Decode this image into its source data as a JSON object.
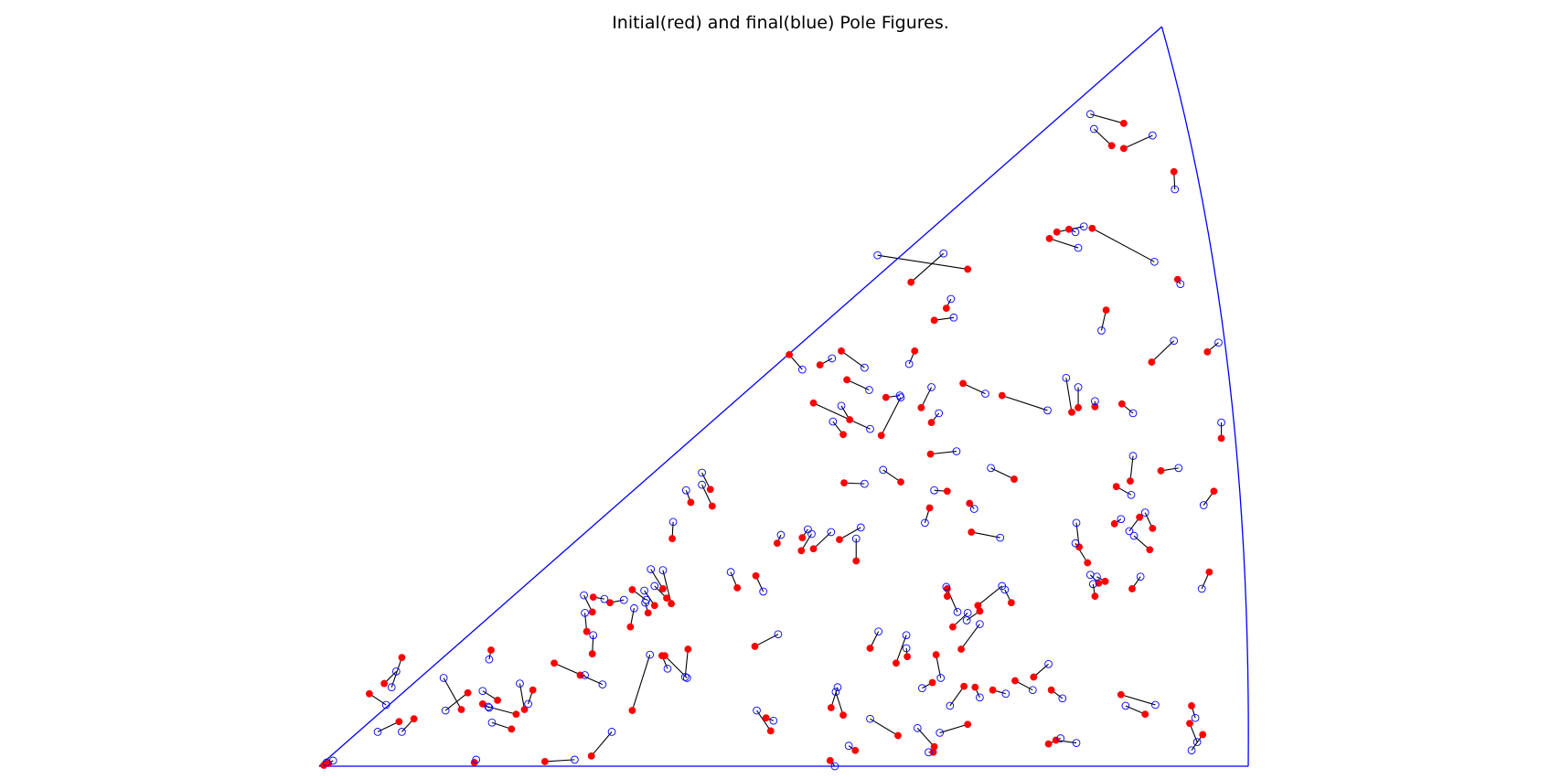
{
  "chart_data": {
    "type": "scatter",
    "title": "Initial(red) and final(blue) Pole Figures.",
    "xlabel": "",
    "ylabel": "",
    "xlim": [
      0,
      1
    ],
    "ylim": [
      0,
      0.78
    ],
    "grid": false,
    "legend": "none",
    "colors": {
      "initial": "#ff0000",
      "final": "#0000ff",
      "link": "#000000",
      "boundary": "#0000ff"
    },
    "series": [
      {
        "name": "initial(red)",
        "marker": "filled-circle",
        "points": [
          [
            0.866,
            0.692
          ],
          [
            0.853,
            0.668
          ],
          [
            0.866,
            0.665
          ],
          [
            0.92,
            0.64
          ],
          [
            0.807,
            0.578
          ],
          [
            0.794,
            0.575
          ],
          [
            0.786,
            0.568
          ],
          [
            0.832,
            0.579
          ],
          [
            0.924,
            0.524
          ],
          [
            0.698,
            0.535
          ],
          [
            0.637,
            0.521
          ],
          [
            0.675,
            0.493
          ],
          [
            0.662,
            0.48
          ],
          [
            0.847,
            0.491
          ],
          [
            0.896,
            0.435
          ],
          [
            0.956,
            0.446
          ],
          [
            0.506,
            0.443
          ],
          [
            0.562,
            0.447
          ],
          [
            0.641,
            0.447
          ],
          [
            0.539,
            0.432
          ],
          [
            0.568,
            0.416
          ],
          [
            0.648,
            0.386
          ],
          [
            0.659,
            0.37
          ],
          [
            0.693,
            0.412
          ],
          [
            0.81,
            0.381
          ],
          [
            0.817,
            0.386
          ],
          [
            0.835,
            0.387
          ],
          [
            0.735,
            0.399
          ],
          [
            0.971,
            0.353
          ],
          [
            0.864,
            0.39
          ],
          [
            0.571,
            0.373
          ],
          [
            0.532,
            0.391
          ],
          [
            0.564,
            0.357
          ],
          [
            0.658,
            0.336
          ],
          [
            0.626,
            0.306
          ],
          [
            0.748,
            0.309
          ],
          [
            0.676,
            0.296
          ],
          [
            0.702,
            0.252
          ],
          [
            0.858,
            0.301
          ],
          [
            0.963,
            0.296
          ],
          [
            0.906,
            0.318
          ],
          [
            0.657,
            0.278
          ],
          [
            0.883,
            0.268
          ],
          [
            0.856,
            0.261
          ],
          [
            0.897,
            0.256
          ],
          [
            0.421,
            0.298
          ],
          [
            0.423,
            0.28
          ],
          [
            0.4,
            0.284
          ],
          [
            0.578,
            0.221
          ],
          [
            0.519,
            0.232
          ],
          [
            0.38,
            0.245
          ],
          [
            0.532,
            0.234
          ],
          [
            0.47,
            0.205
          ],
          [
            0.45,
            0.192
          ],
          [
            0.37,
            0.191
          ],
          [
            0.374,
            0.181
          ],
          [
            0.379,
            0.175
          ],
          [
            0.337,
            0.19
          ],
          [
            0.295,
            0.182
          ],
          [
            0.313,
            0.176
          ],
          [
            0.294,
            0.166
          ],
          [
            0.288,
            0.145
          ],
          [
            0.335,
            0.15
          ],
          [
            0.361,
            0.173
          ],
          [
            0.354,
            0.165
          ],
          [
            0.682,
            0.15
          ],
          [
            0.676,
            0.183
          ],
          [
            0.676,
            0.191
          ],
          [
            0.745,
            0.176
          ],
          [
            0.709,
            0.173
          ],
          [
            0.835,
            0.183
          ],
          [
            0.846,
            0.199
          ],
          [
            0.875,
            0.191
          ],
          [
            0.839,
            0.197
          ],
          [
            0.691,
            0.126
          ],
          [
            0.593,
            0.127
          ],
          [
            0.621,
            0.111
          ],
          [
            0.633,
            0.118
          ],
          [
            0.469,
            0.129
          ],
          [
            0.397,
            0.126
          ],
          [
            0.372,
            0.119
          ],
          [
            0.369,
            0.119
          ],
          [
            0.294,
            0.121
          ],
          [
            0.253,
            0.111
          ],
          [
            0.281,
            0.098
          ],
          [
            0.185,
            0.125
          ],
          [
            0.16,
            0.079
          ],
          [
            0.153,
            0.061
          ],
          [
            0.192,
            0.071
          ],
          [
            0.176,
            0.067
          ],
          [
            0.212,
            0.056
          ],
          [
            0.207,
            0.04
          ],
          [
            0.221,
            0.061
          ],
          [
            0.23,
            0.082
          ],
          [
            0.089,
            0.117
          ],
          [
            0.07,
            0.089
          ],
          [
            0.054,
            0.078
          ],
          [
            0.086,
            0.048
          ],
          [
            0.102,
            0.051
          ],
          [
            0.337,
            0.06
          ],
          [
            0.481,
            0.052
          ],
          [
            0.486,
            0.038
          ],
          [
            0.551,
            0.063
          ],
          [
            0.564,
            0.055
          ],
          [
            0.623,
            0.033
          ],
          [
            0.694,
            0.086
          ],
          [
            0.66,
            0.09
          ],
          [
            0.664,
            0.12
          ],
          [
            0.698,
            0.045
          ],
          [
            0.706,
            0.085
          ],
          [
            0.725,
            0.082
          ],
          [
            0.788,
            0.082
          ],
          [
            0.749,
            0.092
          ],
          [
            0.785,
            0.024
          ],
          [
            0.793,
            0.028
          ],
          [
            0.769,
            0.096
          ],
          [
            0.863,
            0.077
          ],
          [
            0.937,
            0.046
          ],
          [
            0.951,
            0.034
          ],
          [
            0.889,
            0.056
          ],
          [
            0.662,
            0.021
          ],
          [
            0.661,
            0.015
          ],
          [
            0.577,
            0.017
          ],
          [
            0.55,
            0.006
          ],
          [
            0.293,
            0.011
          ],
          [
            0.243,
            0.005
          ],
          [
            0.167,
            0.004
          ],
          [
            0.01,
            0.003
          ],
          [
            0.005,
            0.001
          ],
          [
            0.939,
            0.065
          ],
          [
            0.958,
            0.209
          ],
          [
            0.873,
            0.307
          ],
          [
            0.894,
            0.233
          ],
          [
            0.818,
            0.236
          ],
          [
            0.827,
            0.219
          ],
          [
            0.711,
            0.167
          ],
          [
            0.605,
            0.356
          ],
          [
            0.61,
            0.397
          ],
          [
            0.56,
            0.244
          ],
          [
            0.52,
            0.246
          ],
          [
            0.493,
            0.24
          ],
          [
            0.565,
            0.305
          ],
          [
            0.7,
            0.283
          ]
        ]
      },
      {
        "name": "final(blue)",
        "marker": "open-circle",
        "points": [
          [
            0.83,
            0.702
          ],
          [
            0.834,
            0.686
          ],
          [
            0.897,
            0.679
          ],
          [
            0.921,
            0.621
          ],
          [
            0.814,
            0.575
          ],
          [
            0.823,
            0.581
          ],
          [
            0.817,
            0.558
          ],
          [
            0.899,
            0.543
          ],
          [
            0.927,
            0.519
          ],
          [
            0.601,
            0.55
          ],
          [
            0.672,
            0.552
          ],
          [
            0.68,
            0.503
          ],
          [
            0.683,
            0.483
          ],
          [
            0.842,
            0.469
          ],
          [
            0.92,
            0.458
          ],
          [
            0.968,
            0.456
          ],
          [
            0.52,
            0.427
          ],
          [
            0.587,
            0.429
          ],
          [
            0.635,
            0.433
          ],
          [
            0.552,
            0.439
          ],
          [
            0.592,
            0.405
          ],
          [
            0.659,
            0.408
          ],
          [
            0.667,
            0.38
          ],
          [
            0.717,
            0.401
          ],
          [
            0.804,
            0.418
          ],
          [
            0.817,
            0.408
          ],
          [
            0.835,
            0.393
          ],
          [
            0.784,
            0.383
          ],
          [
            0.971,
            0.37
          ],
          [
            0.876,
            0.38
          ],
          [
            0.562,
            0.388
          ],
          [
            0.593,
            0.363
          ],
          [
            0.553,
            0.371
          ],
          [
            0.686,
            0.339
          ],
          [
            0.607,
            0.319
          ],
          [
            0.723,
            0.321
          ],
          [
            0.662,
            0.297
          ],
          [
            0.733,
            0.246
          ],
          [
            0.874,
            0.292
          ],
          [
            0.952,
            0.281
          ],
          [
            0.925,
            0.321
          ],
          [
            0.652,
            0.262
          ],
          [
            0.872,
            0.253
          ],
          [
            0.863,
            0.266
          ],
          [
            0.889,
            0.273
          ],
          [
            0.412,
            0.316
          ],
          [
            0.412,
            0.303
          ],
          [
            0.395,
            0.297
          ],
          [
            0.578,
            0.245
          ],
          [
            0.53,
            0.25
          ],
          [
            0.381,
            0.263
          ],
          [
            0.551,
            0.252
          ],
          [
            0.478,
            0.188
          ],
          [
            0.443,
            0.209
          ],
          [
            0.357,
            0.212
          ],
          [
            0.361,
            0.194
          ],
          [
            0.37,
            0.211
          ],
          [
            0.352,
            0.179
          ],
          [
            0.307,
            0.18
          ],
          [
            0.328,
            0.179
          ],
          [
            0.285,
            0.184
          ],
          [
            0.286,
            0.165
          ],
          [
            0.339,
            0.17
          ],
          [
            0.35,
            0.189
          ],
          [
            0.351,
            0.176
          ],
          [
            0.698,
            0.165
          ],
          [
            0.675,
            0.193
          ],
          [
            0.687,
            0.166
          ],
          [
            0.738,
            0.19
          ],
          [
            0.735,
            0.194
          ],
          [
            0.833,
            0.196
          ],
          [
            0.837,
            0.204
          ],
          [
            0.884,
            0.204
          ],
          [
            0.83,
            0.206
          ],
          [
            0.711,
            0.153
          ],
          [
            0.602,
            0.145
          ],
          [
            0.632,
            0.141
          ],
          [
            0.632,
            0.127
          ],
          [
            0.494,
            0.142
          ],
          [
            0.394,
            0.096
          ],
          [
            0.396,
            0.095
          ],
          [
            0.375,
            0.105
          ],
          [
            0.295,
            0.141
          ],
          [
            0.305,
            0.088
          ],
          [
            0.286,
            0.098
          ],
          [
            0.183,
            0.115
          ],
          [
            0.136,
            0.06
          ],
          [
            0.134,
            0.095
          ],
          [
            0.176,
            0.081
          ],
          [
            0.183,
            0.063
          ],
          [
            0.182,
            0.064
          ],
          [
            0.186,
            0.047
          ],
          [
            0.216,
            0.089
          ],
          [
            0.225,
            0.067
          ],
          [
            0.078,
            0.085
          ],
          [
            0.083,
            0.102
          ],
          [
            0.072,
            0.066
          ],
          [
            0.063,
            0.037
          ],
          [
            0.089,
            0.037
          ],
          [
            0.356,
            0.12
          ],
          [
            0.489,
            0.049
          ],
          [
            0.471,
            0.06
          ],
          [
            0.558,
            0.085
          ],
          [
            0.556,
            0.08
          ],
          [
            0.593,
            0.051
          ],
          [
            0.679,
            0.065
          ],
          [
            0.649,
            0.084
          ],
          [
            0.669,
            0.095
          ],
          [
            0.668,
            0.036
          ],
          [
            0.711,
            0.074
          ],
          [
            0.739,
            0.078
          ],
          [
            0.8,
            0.073
          ],
          [
            0.768,
            0.082
          ],
          [
            0.798,
            0.03
          ],
          [
            0.815,
            0.025
          ],
          [
            0.785,
            0.11
          ],
          [
            0.9,
            0.066
          ],
          [
            0.945,
            0.026
          ],
          [
            0.939,
            0.017
          ],
          [
            0.868,
            0.065
          ],
          [
            0.644,
            0.041
          ],
          [
            0.656,
            0.015
          ],
          [
            0.57,
            0.022
          ],
          [
            0.555,
            0.0
          ],
          [
            0.315,
            0.037
          ],
          [
            0.275,
            0.007
          ],
          [
            0.169,
            0.007
          ],
          [
            0.015,
            0.006
          ],
          [
            0.008,
            0.004
          ],
          [
            0.943,
            0.052
          ],
          [
            0.95,
            0.191
          ],
          [
            0.876,
            0.334
          ],
          [
            0.877,
            0.248
          ],
          [
            0.815,
            0.262
          ],
          [
            0.814,
            0.24
          ],
          [
            0.697,
            0.157
          ],
          [
            0.626,
            0.397
          ],
          [
            0.625,
            0.399
          ],
          [
            0.583,
            0.257
          ],
          [
            0.526,
            0.255
          ],
          [
            0.497,
            0.249
          ],
          [
            0.587,
            0.304
          ],
          [
            0.705,
            0.277
          ]
        ]
      }
    ]
  }
}
